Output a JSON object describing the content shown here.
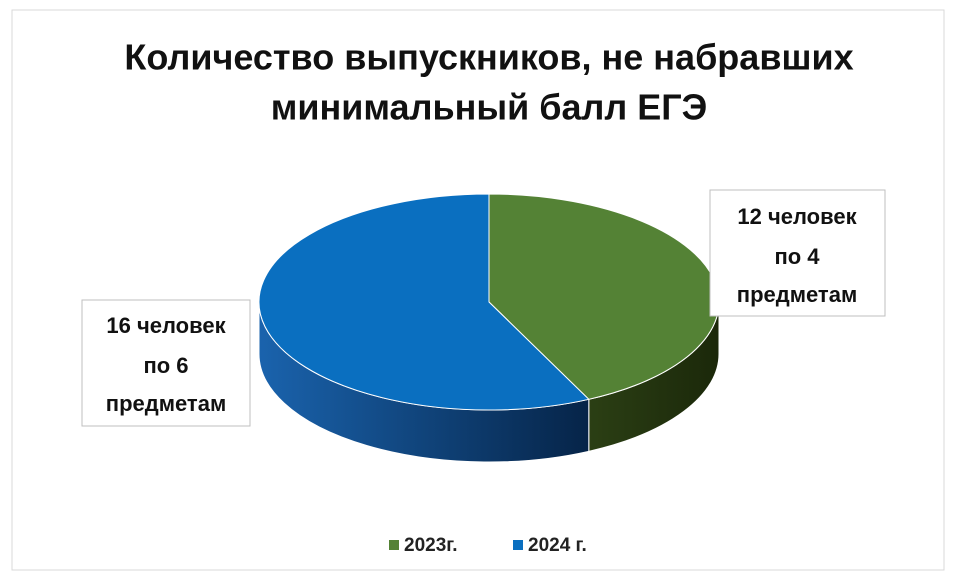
{
  "chart_data": {
    "type": "pie3d",
    "title": [
      "Количество выпускников, не набравших",
      "минимальный балл ЕГЭ"
    ],
    "categories": [
      "2023г.",
      "2024 г."
    ],
    "values": [
      12,
      16
    ],
    "value_labels": [
      [
        "12 человек",
        "по 4",
        "предметам"
      ],
      [
        "16 человек",
        "по 6",
        "предметам"
      ]
    ],
    "colors": [
      "#548235",
      "#0a6fc0"
    ],
    "side_colors": [
      "#27380f",
      "#0b3e78"
    ],
    "legend": "bottom"
  }
}
